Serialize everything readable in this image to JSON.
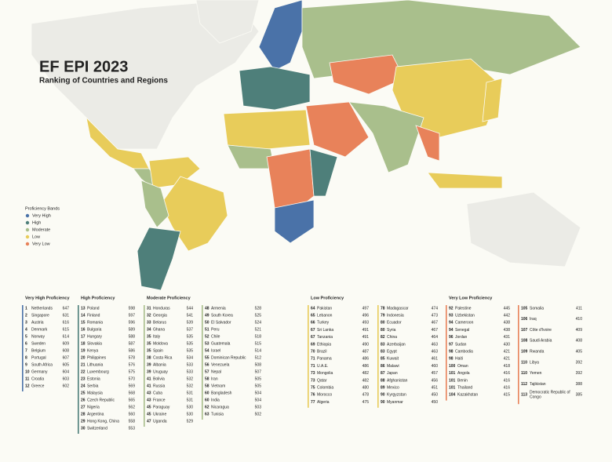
{
  "header": {
    "title": "EF EPI 2023",
    "subtitle": "Ranking of Countries and Regions"
  },
  "legend": {
    "title": "Proficiency Bands",
    "items": [
      "Very High",
      "High",
      "Moderate",
      "Low",
      "Very Low"
    ]
  },
  "bands": [
    {
      "name": "Very High Proficiency",
      "color": "#4a72a8",
      "rows": [
        [
          1,
          "Netherlands",
          647
        ],
        [
          2,
          "Singapore",
          631
        ],
        [
          3,
          "Austria",
          616
        ],
        [
          4,
          "Denmark",
          615
        ],
        [
          5,
          "Norway",
          614
        ],
        [
          6,
          "Sweden",
          609
        ],
        [
          7,
          "Belgium",
          608
        ],
        [
          8,
          "Portugal",
          607
        ],
        [
          9,
          "South Africa",
          605
        ],
        [
          10,
          "Germany",
          604
        ],
        [
          11,
          "Croatia",
          603
        ],
        [
          12,
          "Greece",
          602
        ]
      ]
    },
    {
      "name": "High Proficiency",
      "color": "#4e7f7a",
      "rows": [
        [
          13,
          "Poland",
          598
        ],
        [
          14,
          "Finland",
          597
        ],
        [
          15,
          "Romania",
          596
        ],
        [
          16,
          "Bulgaria",
          589
        ],
        [
          17,
          "Hungary",
          588
        ],
        [
          18,
          "Slovakia",
          587
        ],
        [
          19,
          "Kenya",
          586
        ],
        [
          20,
          "Philippines",
          578
        ],
        [
          21,
          "Lithuania",
          576
        ],
        [
          22,
          "Luxembourg",
          575
        ],
        [
          23,
          "Estonia",
          570
        ],
        [
          24,
          "Serbia",
          569
        ],
        [
          25,
          "Malaysia",
          568
        ],
        [
          26,
          "Czech Republic",
          565
        ],
        [
          27,
          "Nigeria",
          562
        ],
        [
          28,
          "Argentina",
          560
        ],
        [
          29,
          "Hong Kong, China",
          558
        ],
        [
          30,
          "Switzerland",
          553
        ]
      ]
    },
    {
      "name": "Moderate Proficiency",
      "color": "#a9bf8c",
      "rows": [
        [
          31,
          "Honduras",
          544
        ],
        [
          32,
          "Georgia",
          541
        ],
        [
          33,
          "Belarus",
          539
        ],
        [
          34,
          "Ghana",
          537
        ],
        [
          35,
          "Italy",
          535
        ],
        [
          35,
          "Moldova",
          535
        ],
        [
          35,
          "Spain",
          535
        ],
        [
          38,
          "Costa Rica",
          534
        ],
        [
          39,
          "Albania",
          533
        ],
        [
          39,
          "Uruguay",
          533
        ],
        [
          41,
          "Bolivia",
          532
        ],
        [
          41,
          "Russia",
          532
        ],
        [
          43,
          "Cuba",
          531
        ],
        [
          43,
          "France",
          531
        ],
        [
          45,
          "Paraguay",
          530
        ],
        [
          45,
          "Ukraine",
          530
        ],
        [
          47,
          "Uganda",
          529
        ],
        [
          48,
          "Armenia",
          528
        ],
        [
          49,
          "South Korea",
          525
        ],
        [
          50,
          "El Salvador",
          524
        ],
        [
          51,
          "Peru",
          521
        ],
        [
          52,
          "Chile",
          518
        ],
        [
          53,
          "Guatemala",
          515
        ],
        [
          54,
          "Israel",
          514
        ],
        [
          55,
          "Dominican Republic",
          512
        ],
        [
          56,
          "Venezuela",
          508
        ],
        [
          57,
          "Nepal",
          507
        ],
        [
          58,
          "Iran",
          505
        ],
        [
          58,
          "Vietnam",
          505
        ],
        [
          60,
          "Bangladesh",
          504
        ],
        [
          60,
          "India",
          504
        ],
        [
          62,
          "Nicaragua",
          503
        ],
        [
          63,
          "Tunisia",
          502
        ]
      ]
    },
    {
      "name": "Low Proficiency",
      "color": "#e8cc5a",
      "rows": [
        [
          64,
          "Pakistan",
          497
        ],
        [
          65,
          "Lebanon",
          496
        ],
        [
          66,
          "Turkey",
          493
        ],
        [
          67,
          "Sri Lanka",
          491
        ],
        [
          67,
          "Tanzania",
          491
        ],
        [
          69,
          "Ethiopia",
          490
        ],
        [
          70,
          "Brazil",
          487
        ],
        [
          71,
          "Panama",
          486
        ],
        [
          71,
          "U.A.E.",
          486
        ],
        [
          73,
          "Mongolia",
          482
        ],
        [
          73,
          "Qatar",
          482
        ],
        [
          75,
          "Colombia",
          480
        ],
        [
          76,
          "Morocco",
          478
        ],
        [
          77,
          "Algeria",
          475
        ],
        [
          78,
          "Madagascar",
          474
        ],
        [
          79,
          "Indonesia",
          473
        ],
        [
          80,
          "Ecuador",
          467
        ],
        [
          80,
          "Syria",
          467
        ],
        [
          82,
          "China",
          464
        ],
        [
          83,
          "Azerbaijan",
          463
        ],
        [
          83,
          "Egypt",
          463
        ],
        [
          85,
          "Kuwait",
          461
        ],
        [
          86,
          "Malawi",
          460
        ],
        [
          87,
          "Japan",
          457
        ],
        [
          88,
          "Afghanistan",
          456
        ],
        [
          89,
          "Mexico",
          451
        ],
        [
          90,
          "Kyrgyzstan",
          450
        ],
        [
          90,
          "Myanmar",
          450
        ]
      ]
    },
    {
      "name": "Very Low Proficiency",
      "color": "#e8825a",
      "rows": [
        [
          92,
          "Palestine",
          445
        ],
        [
          93,
          "Uzbekistan",
          442
        ],
        [
          94,
          "Cameroon",
          438
        ],
        [
          94,
          "Senegal",
          438
        ],
        [
          96,
          "Jordan",
          431
        ],
        [
          97,
          "Sudan",
          430
        ],
        [
          98,
          "Cambodia",
          421
        ],
        [
          98,
          "Haiti",
          421
        ],
        [
          100,
          "Oman",
          418
        ],
        [
          101,
          "Angola",
          416
        ],
        [
          101,
          "Benin",
          416
        ],
        [
          101,
          "Thailand",
          416
        ],
        [
          104,
          "Kazakhstan",
          415
        ],
        [
          105,
          "Somalia",
          411
        ],
        [
          106,
          "Iraq",
          410
        ],
        [
          107,
          "Côte d'Ivoire",
          409
        ],
        [
          108,
          "Saudi Arabia",
          408
        ],
        [
          109,
          "Rwanda",
          405
        ],
        [
          110,
          "Libya",
          392
        ],
        [
          110,
          "Yemen",
          392
        ],
        [
          112,
          "Tajikistan",
          388
        ],
        [
          113,
          "Democratic Republic of Congo",
          385
        ]
      ]
    }
  ]
}
